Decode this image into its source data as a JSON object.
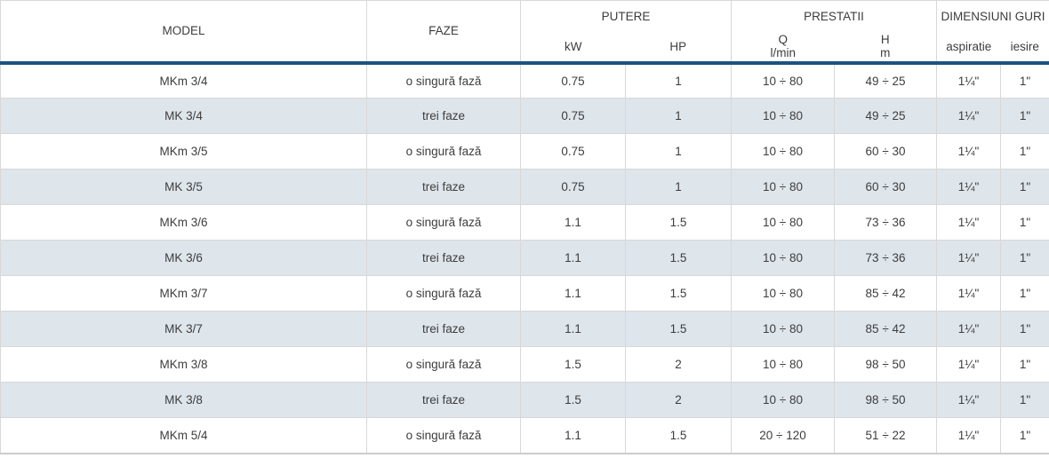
{
  "table": {
    "headers": {
      "model": "MODEL",
      "faze": "FAZE",
      "putere": "PUTERE",
      "kw": "kW",
      "hp": "HP",
      "prestatii": "PRESTATII",
      "q_symbol": "Q",
      "q_unit": "l/min",
      "h_symbol": "H",
      "h_unit": "m",
      "dimensiuni": "DIMENSIUNI GURI",
      "aspiratie": "aspiratie",
      "iesire": "iesire"
    },
    "rows": [
      {
        "model": "MKm 3/4",
        "faze": "o singură fază",
        "kw": "0.75",
        "hp": "1",
        "q": "10 ÷ 80",
        "h": "49 ÷ 25",
        "aspiratie": "1¼\"",
        "iesire": "1\""
      },
      {
        "model": "MK 3/4",
        "faze": "trei faze",
        "kw": "0.75",
        "hp": "1",
        "q": "10 ÷ 80",
        "h": "49 ÷ 25",
        "aspiratie": "1¼\"",
        "iesire": "1\""
      },
      {
        "model": "MKm 3/5",
        "faze": "o singură fază",
        "kw": "0.75",
        "hp": "1",
        "q": "10 ÷ 80",
        "h": "60 ÷ 30",
        "aspiratie": "1¼\"",
        "iesire": "1\""
      },
      {
        "model": "MK 3/5",
        "faze": "trei faze",
        "kw": "0.75",
        "hp": "1",
        "q": "10 ÷ 80",
        "h": "60 ÷ 30",
        "aspiratie": "1¼\"",
        "iesire": "1\""
      },
      {
        "model": "MKm 3/6",
        "faze": "o singură fază",
        "kw": "1.1",
        "hp": "1.5",
        "q": "10 ÷ 80",
        "h": "73 ÷ 36",
        "aspiratie": "1¼\"",
        "iesire": "1\""
      },
      {
        "model": "MK 3/6",
        "faze": "trei faze",
        "kw": "1.1",
        "hp": "1.5",
        "q": "10 ÷ 80",
        "h": "73 ÷ 36",
        "aspiratie": "1¼\"",
        "iesire": "1\""
      },
      {
        "model": "MKm 3/7",
        "faze": "o singură fază",
        "kw": "1.1",
        "hp": "1.5",
        "q": "10 ÷ 80",
        "h": "85 ÷ 42",
        "aspiratie": "1¼\"",
        "iesire": "1\""
      },
      {
        "model": "MK 3/7",
        "faze": "trei faze",
        "kw": "1.1",
        "hp": "1.5",
        "q": "10 ÷ 80",
        "h": "85 ÷ 42",
        "aspiratie": "1¼\"",
        "iesire": "1\""
      },
      {
        "model": "MKm 3/8",
        "faze": "o singură fază",
        "kw": "1.5",
        "hp": "2",
        "q": "10 ÷ 80",
        "h": "98 ÷ 50",
        "aspiratie": "1¼\"",
        "iesire": "1\""
      },
      {
        "model": "MK 3/8",
        "faze": "trei faze",
        "kw": "1.5",
        "hp": "2",
        "q": "10 ÷ 80",
        "h": "98 ÷ 50",
        "aspiratie": "1¼\"",
        "iesire": "1\""
      },
      {
        "model": "MKm 5/4",
        "faze": "o singură fază",
        "kw": "1.1",
        "hp": "1.5",
        "q": "20 ÷ 120",
        "h": "51 ÷ 22",
        "aspiratie": "1¼\"",
        "iesire": "1\""
      }
    ],
    "colors": {
      "header_separator": "#1a5380",
      "row_stripe": "#dee5eb",
      "cell_border": "#d8d8d8",
      "text": "#3d3d3d"
    }
  }
}
